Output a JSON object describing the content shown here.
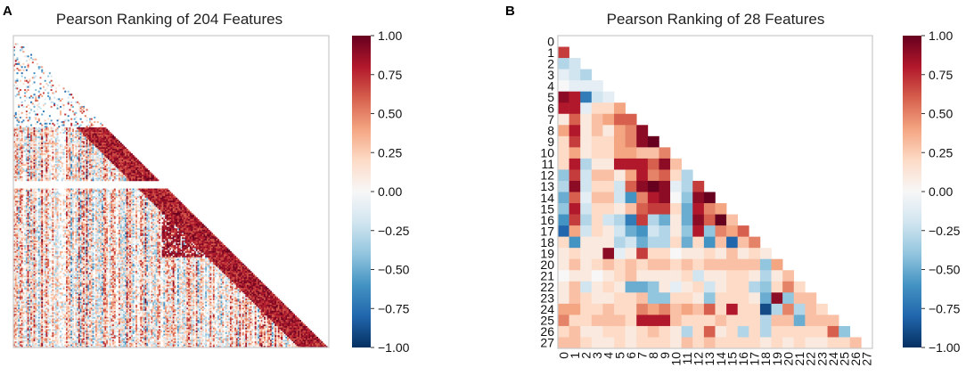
{
  "colors": {
    "rdbu": [
      "#67001f",
      "#b2182b",
      "#d6604d",
      "#f4a582",
      "#fddbc7",
      "#f7f7f7",
      "#d1e5f0",
      "#92c5de",
      "#4393c3",
      "#2166ac",
      "#053061"
    ],
    "frame": "#c8c8c8"
  },
  "chart_data": [
    {
      "panel_label": "A",
      "type": "heatmap",
      "title": "Pearson Ranking of 204 Features",
      "n_features": 204,
      "mask": "lower-triangle",
      "tick_labels_shown": false,
      "colorbar": {
        "vmin": -1.0,
        "vmax": 1.0,
        "cmap": "RdBu_r",
        "ticks": [
          "1.00",
          "0.75",
          "0.50",
          "0.25",
          "0.00",
          "−0.25",
          "−0.50",
          "−0.75",
          "−1.00"
        ]
      }
    },
    {
      "panel_label": "B",
      "type": "heatmap",
      "title": "Pearson Ranking of 28 Features",
      "n_features": 28,
      "mask": "lower-triangle",
      "row_labels": [
        "0",
        "1",
        "2",
        "3",
        "4",
        "5",
        "6",
        "7",
        "8",
        "9",
        "10",
        "11",
        "12",
        "13",
        "14",
        "15",
        "16",
        "17",
        "18",
        "19",
        "20",
        "21",
        "22",
        "23",
        "24",
        "25",
        "26",
        "27"
      ],
      "col_labels": [
        "0",
        "1",
        "2",
        "3",
        "4",
        "5",
        "6",
        "7",
        "8",
        "9",
        "10",
        "11",
        "12",
        "13",
        "14",
        "15",
        "16",
        "17",
        "18",
        "19",
        "20",
        "21",
        "22",
        "23",
        "24",
        "25",
        "26",
        "27"
      ],
      "values": [
        [],
        [
          0.7
        ],
        [
          -0.3,
          -0.2
        ],
        [
          -0.1,
          -0.2,
          -0.3
        ],
        [
          0.0,
          -0.1,
          -0.1,
          -0.1
        ],
        [
          0.9,
          0.8,
          -0.7,
          -0.2,
          -0.1
        ],
        [
          0.8,
          0.8,
          -0.1,
          0.2,
          0.2,
          0.4
        ],
        [
          0.1,
          0.6,
          0.1,
          0.3,
          0.4,
          0.6,
          0.6
        ],
        [
          0.4,
          0.8,
          0.1,
          0.3,
          0.1,
          0.4,
          0.5,
          0.9
        ],
        [
          0.2,
          0.7,
          0.1,
          0.2,
          0.2,
          0.4,
          0.5,
          0.9,
          1.0
        ],
        [
          0.2,
          0.4,
          0.1,
          0.2,
          0.2,
          0.4,
          0.4,
          0.3,
          0.3,
          0.5
        ],
        [
          0.2,
          0.8,
          -0.3,
          0.1,
          0.1,
          0.8,
          0.8,
          0.8,
          0.6,
          0.9,
          0.3
        ],
        [
          -0.4,
          0.7,
          -0.2,
          0.3,
          0.3,
          0.1,
          0.4,
          0.8,
          0.5,
          0.6,
          0.2,
          -0.3
        ],
        [
          -0.3,
          0.9,
          -0.2,
          0.2,
          0.2,
          -0.2,
          0.6,
          0.9,
          1.0,
          0.9,
          -0.1,
          -0.3,
          0.7
        ],
        [
          -0.5,
          0.6,
          -0.1,
          0.3,
          0.3,
          -0.2,
          -0.6,
          0.5,
          0.8,
          0.9,
          0.0,
          -0.4,
          0.9,
          1.0
        ],
        [
          -0.4,
          0.8,
          -0.2,
          0.2,
          0.2,
          0.1,
          0.3,
          0.6,
          0.7,
          0.7,
          0.2,
          -0.5,
          0.8,
          0.5,
          0.4
        ],
        [
          -0.6,
          0.7,
          -0.3,
          0.2,
          -0.2,
          -0.3,
          -0.7,
          0.7,
          -0.3,
          -0.5,
          0.1,
          -0.5,
          0.9,
          0.6,
          1.0,
          0.3
        ],
        [
          -0.8,
          0.4,
          -0.2,
          0.2,
          0.1,
          -0.2,
          -0.5,
          -0.6,
          -0.2,
          -0.3,
          0.1,
          -0.4,
          0.8,
          -0.4,
          0.5,
          0.4,
          0.6
        ],
        [
          0.2,
          -0.6,
          0.1,
          0.1,
          0.1,
          -0.3,
          -0.2,
          -0.5,
          -0.3,
          -0.3,
          0.2,
          -0.5,
          0.2,
          -0.6,
          0.3,
          -0.8,
          0.3,
          0.5
        ],
        [
          0.1,
          0.2,
          0.1,
          0.1,
          0.9,
          -0.1,
          0.1,
          0.7,
          0.2,
          0.2,
          0.0,
          0.1,
          0.1,
          0.2,
          0.1,
          0.3,
          0.1,
          0.2,
          0.1
        ],
        [
          0.1,
          0.3,
          0.1,
          0.2,
          0.3,
          0.2,
          0.3,
          0.2,
          0.3,
          0.3,
          0.2,
          0.3,
          0.2,
          0.3,
          0.3,
          0.3,
          0.3,
          0.3,
          -0.4,
          0.4
        ],
        [
          0.0,
          0.1,
          0.1,
          0.0,
          0.1,
          0.2,
          0.3,
          0.1,
          0.1,
          0.1,
          0.1,
          0.2,
          -0.2,
          0.1,
          0.1,
          0.2,
          0.2,
          0.1,
          -0.3,
          0.1,
          0.3
        ],
        [
          0.1,
          0.3,
          -0.2,
          0.1,
          0.2,
          0.1,
          -0.5,
          -0.5,
          -0.4,
          0.1,
          -0.1,
          0.1,
          0.2,
          -0.2,
          0.1,
          0.2,
          0.2,
          -0.3,
          -0.4,
          0.2,
          0.5,
          0.2
        ],
        [
          0.1,
          0.3,
          0.2,
          0.1,
          0.1,
          0.2,
          0.2,
          0.3,
          -0.4,
          -0.4,
          0.2,
          0.2,
          0.1,
          -0.4,
          0.2,
          0.2,
          0.2,
          0.1,
          -0.5,
          0.9,
          -0.4,
          0.3,
          0.3
        ],
        [
          0.4,
          0.4,
          0.2,
          0.2,
          0.3,
          0.2,
          0.2,
          0.5,
          0.4,
          0.5,
          0.3,
          0.4,
          0.3,
          0.6,
          0.2,
          0.8,
          0.2,
          0.2,
          -0.9,
          -0.3,
          0.5,
          -0.3,
          0.3,
          0.2
        ],
        [
          0.5,
          0.2,
          0.2,
          0.3,
          0.3,
          0.3,
          0.2,
          0.8,
          0.8,
          0.8,
          0.3,
          0.2,
          0.2,
          0.2,
          0.3,
          0.2,
          0.2,
          0.2,
          -0.3,
          0.3,
          0.3,
          -0.5,
          0.3,
          0.3,
          0.3
        ],
        [
          0.2,
          0.3,
          0.1,
          0.1,
          0.2,
          0.2,
          0.1,
          0.2,
          0.3,
          0.2,
          0.1,
          -0.3,
          0.2,
          0.6,
          0.1,
          0.2,
          -0.3,
          0.2,
          -0.3,
          0.2,
          0.2,
          0.2,
          0.2,
          0.2,
          0.6,
          -0.4
        ],
        [
          0.3,
          0.3,
          0.2,
          0.1,
          0.1,
          0.2,
          0.1,
          0.2,
          0.2,
          0.2,
          0.1,
          0.3,
          0.2,
          0.3,
          0.2,
          0.2,
          0.2,
          0.2,
          0.1,
          0.2,
          0.1,
          0.2,
          0.1,
          0.1,
          0.2,
          0.2,
          0.3
        ]
      ],
      "colorbar": {
        "vmin": -1.0,
        "vmax": 1.0,
        "cmap": "RdBu_r",
        "ticks": [
          "1.00",
          "0.75",
          "0.50",
          "0.25",
          "0.00",
          "−0.25",
          "−0.50",
          "−0.75",
          "−1.00"
        ]
      }
    }
  ]
}
